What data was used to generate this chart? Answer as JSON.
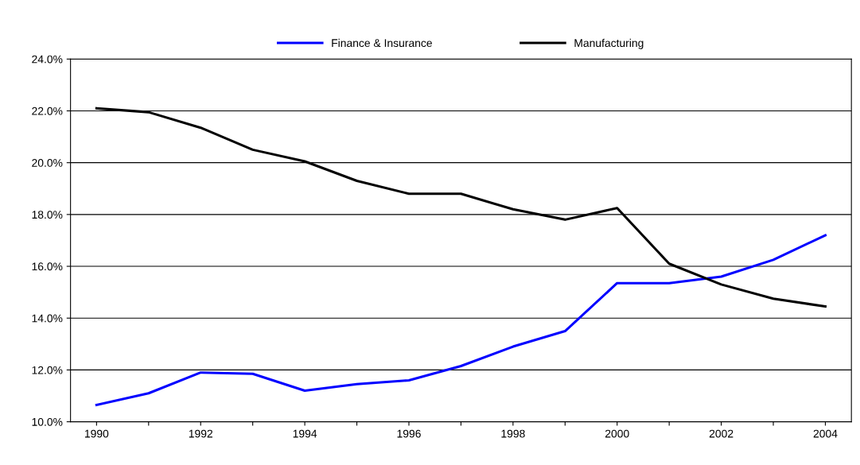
{
  "chart_data": {
    "type": "line",
    "categories": [
      "1990",
      null,
      "1992",
      null,
      "1994",
      null,
      "1996",
      null,
      "1998",
      null,
      "2000",
      null,
      "2002",
      null,
      "2004"
    ],
    "series": [
      {
        "name": "Finance & Insurance",
        "color": "#0000ff",
        "values": [
          10.65,
          11.1,
          11.9,
          11.85,
          11.2,
          11.45,
          11.6,
          12.15,
          12.9,
          13.5,
          15.35,
          15.35,
          15.6,
          16.25,
          17.2
        ]
      },
      {
        "name": "Manufacturing",
        "color": "#000000",
        "values": [
          22.1,
          21.95,
          21.35,
          20.5,
          20.05,
          19.3,
          18.8,
          18.8,
          18.2,
          17.8,
          18.25,
          16.1,
          15.3,
          14.75,
          14.45
        ]
      }
    ],
    "ylim": [
      10,
      24
    ],
    "yticks": [
      {
        "value": 10,
        "label": "10.0%"
      },
      {
        "value": 12,
        "label": "12.0%"
      },
      {
        "value": 14,
        "label": "14.0%"
      },
      {
        "value": 16,
        "label": "16.0%"
      },
      {
        "value": 18,
        "label": "18.0%"
      },
      {
        "value": 20,
        "label": "20.0%"
      },
      {
        "value": 22,
        "label": "22.0%"
      },
      {
        "value": 24,
        "label": "24.0%"
      }
    ],
    "grid": "y",
    "legend": "top",
    "marker": "none",
    "line_style": "solid"
  }
}
